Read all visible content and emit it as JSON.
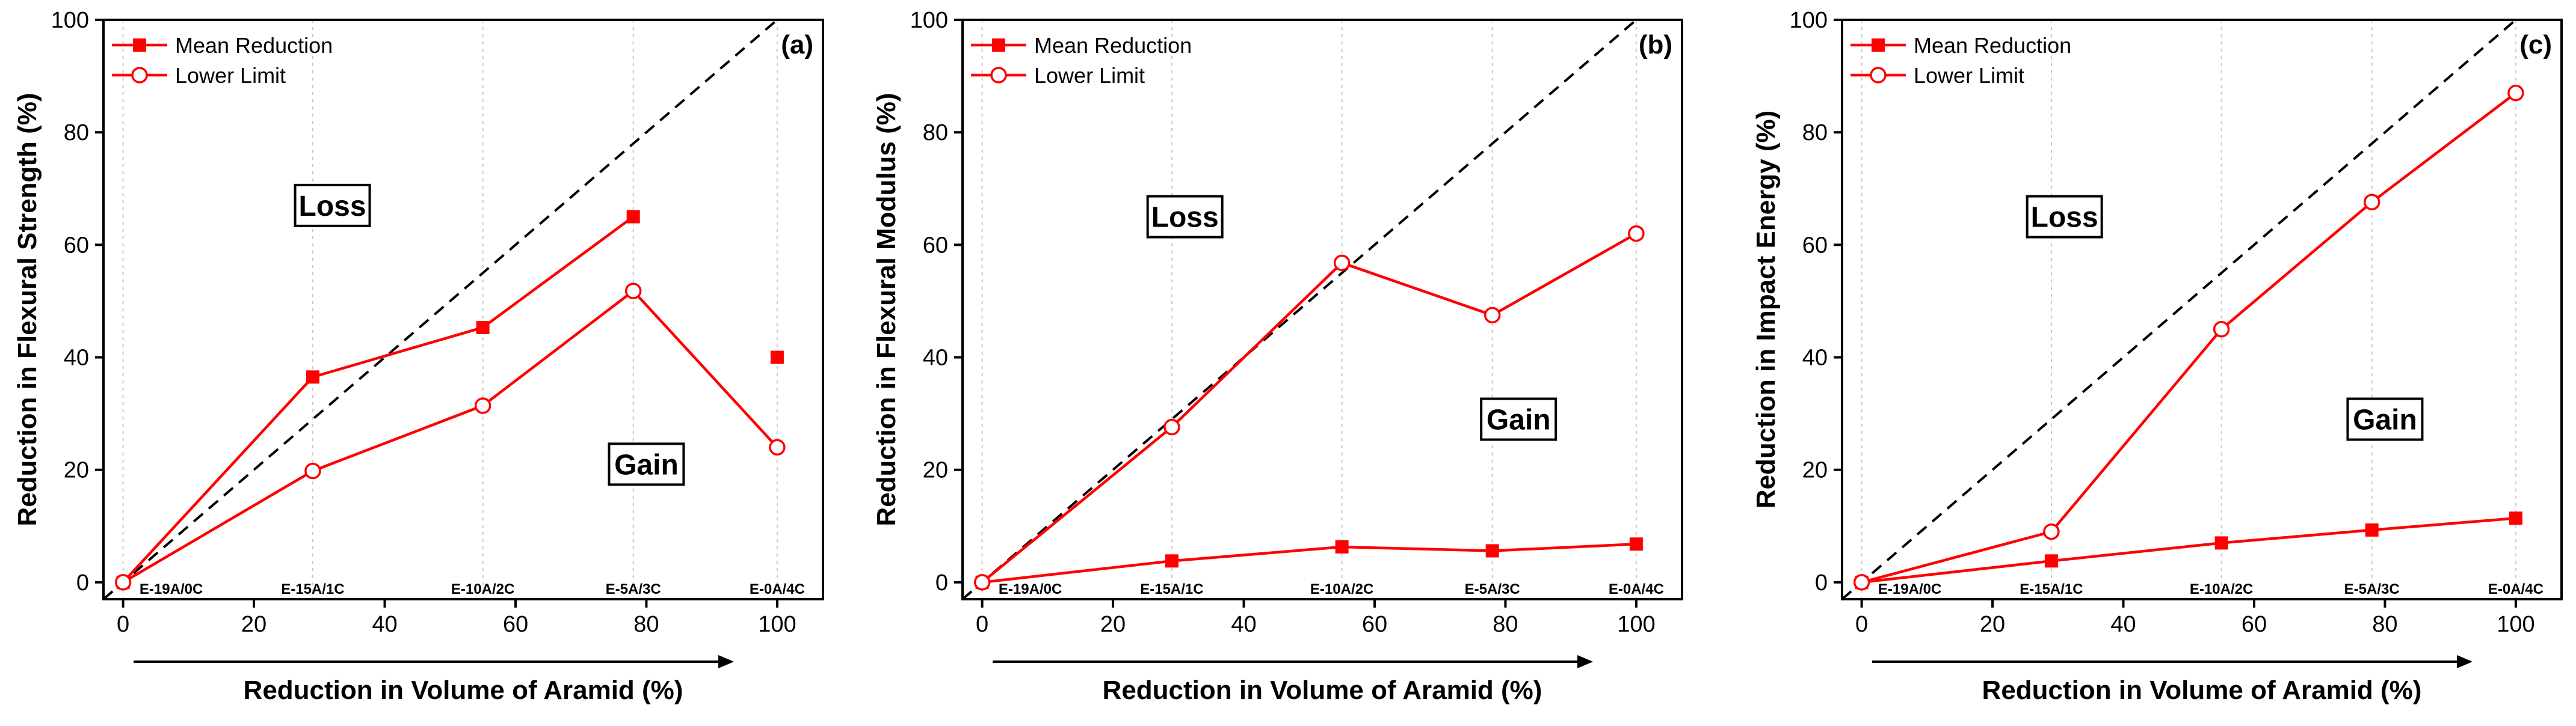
{
  "colors": {
    "series": "#ff0000",
    "diagonal": "#000000",
    "grid": "#c8c8c8"
  },
  "chart_data": [
    {
      "type": "line",
      "panel_label": "(a)",
      "ylabel": "Reduction in Flexural Strength (%)",
      "xlabel": "Reduction in Volume of Aramid (%)",
      "xlim": [
        -3,
        107
      ],
      "ylim": [
        -3,
        100
      ],
      "xticks": [
        0,
        20,
        40,
        60,
        80,
        100
      ],
      "yticks": [
        0,
        20,
        40,
        60,
        80,
        100
      ],
      "grid_x": [
        0,
        29,
        55,
        78,
        100
      ],
      "diagonal": [
        [
          -3,
          -3
        ],
        [
          100,
          100
        ]
      ],
      "category_labels": [
        {
          "x": 0,
          "label": "E-19A/0C"
        },
        {
          "x": 29,
          "label": "E-15A/1C"
        },
        {
          "x": 55,
          "label": "E-10A/2C"
        },
        {
          "x": 78,
          "label": "E-5A/3C"
        },
        {
          "x": 100,
          "label": "E-0A/4C"
        }
      ],
      "series": [
        {
          "name": "Mean Reduction",
          "marker": "square",
          "x": [
            0,
            29,
            55,
            78,
            100
          ],
          "y": [
            0,
            36.5,
            45.3,
            65,
            40
          ],
          "connect": [
            0,
            1,
            2,
            3
          ]
        },
        {
          "name": "Lower Limit",
          "marker": "circle",
          "x": [
            0,
            29,
            55,
            78,
            100
          ],
          "y": [
            0,
            19.8,
            31.4,
            51.8,
            24
          ],
          "connect": [
            0,
            1,
            2,
            3,
            4
          ]
        }
      ],
      "annotations": [
        {
          "text": "Loss",
          "x": 32,
          "y": 67
        },
        {
          "text": "Gain",
          "x": 80,
          "y": 21
        }
      ]
    },
    {
      "type": "line",
      "panel_label": "(b)",
      "ylabel": "Reduction in Flexural Modulus (%)",
      "xlabel": "Reduction in Volume of Aramid (%)",
      "xlim": [
        -3,
        107
      ],
      "ylim": [
        -3,
        100
      ],
      "xticks": [
        0,
        20,
        40,
        60,
        80,
        100
      ],
      "yticks": [
        0,
        20,
        40,
        60,
        80,
        100
      ],
      "grid_x": [
        0,
        29,
        55,
        78,
        100
      ],
      "diagonal": [
        [
          -3,
          -3
        ],
        [
          100,
          100
        ]
      ],
      "category_labels": [
        {
          "x": 0,
          "label": "E-19A/0C"
        },
        {
          "x": 29,
          "label": "E-15A/1C"
        },
        {
          "x": 55,
          "label": "E-10A/2C"
        },
        {
          "x": 78,
          "label": "E-5A/3C"
        },
        {
          "x": 100,
          "label": "E-0A/4C"
        }
      ],
      "series": [
        {
          "name": "Mean Reduction",
          "marker": "square",
          "x": [
            0,
            29,
            55,
            78,
            100
          ],
          "y": [
            0,
            3.8,
            6.3,
            5.6,
            6.8
          ],
          "connect": [
            0,
            1,
            2,
            3,
            4
          ]
        },
        {
          "name": "Lower Limit",
          "marker": "circle",
          "x": [
            0,
            29,
            55,
            78,
            100
          ],
          "y": [
            0,
            27.6,
            56.8,
            47.5,
            62
          ],
          "connect": [
            0,
            1,
            2,
            3,
            4
          ]
        }
      ],
      "annotations": [
        {
          "text": "Loss",
          "x": 31,
          "y": 65
        },
        {
          "text": "Gain",
          "x": 82,
          "y": 29
        }
      ]
    },
    {
      "type": "line",
      "panel_label": "(c)",
      "ylabel": "Reduction in Impact Energy (%)",
      "xlabel": "Reduction in Volume of Aramid (%)",
      "xlim": [
        -3,
        107
      ],
      "ylim": [
        -3,
        100
      ],
      "xticks": [
        0,
        20,
        40,
        60,
        80,
        100
      ],
      "yticks": [
        0,
        20,
        40,
        60,
        80,
        100
      ],
      "grid_x": [
        0,
        29,
        55,
        78,
        100
      ],
      "diagonal": [
        [
          -3,
          -3
        ],
        [
          100,
          100
        ]
      ],
      "category_labels": [
        {
          "x": 0,
          "label": "E-19A/0C"
        },
        {
          "x": 29,
          "label": "E-15A/1C"
        },
        {
          "x": 55,
          "label": "E-10A/2C"
        },
        {
          "x": 78,
          "label": "E-5A/3C"
        },
        {
          "x": 100,
          "label": "E-0A/4C"
        }
      ],
      "series": [
        {
          "name": "Mean Reduction",
          "marker": "square",
          "x": [
            0,
            29,
            55,
            78,
            100
          ],
          "y": [
            0,
            3.8,
            7,
            9.3,
            11.4
          ],
          "connect": [
            0,
            1,
            2,
            3,
            4
          ]
        },
        {
          "name": "Lower Limit",
          "marker": "circle",
          "x": [
            0,
            29,
            55,
            78,
            100
          ],
          "y": [
            0,
            9,
            45,
            67.6,
            87
          ],
          "connect": [
            0,
            1,
            2,
            3,
            4
          ]
        }
      ],
      "annotations": [
        {
          "text": "Loss",
          "x": 31,
          "y": 65
        },
        {
          "text": "Gain",
          "x": 80,
          "y": 29
        }
      ]
    }
  ]
}
